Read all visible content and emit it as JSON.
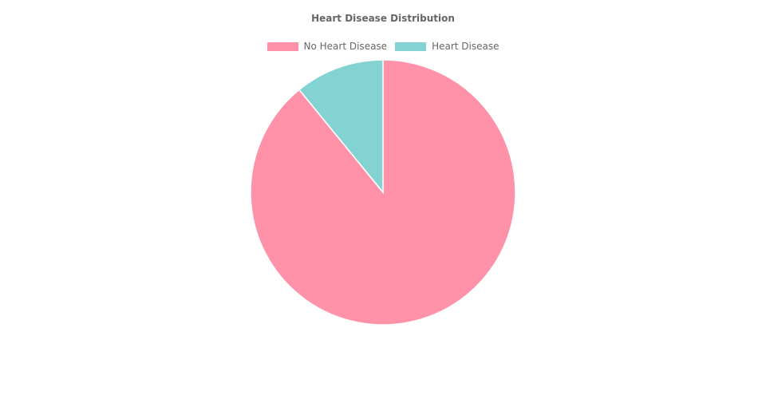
{
  "chart_data": {
    "type": "pie",
    "title": "Heart Disease Distribution",
    "labels": [
      "No Heart Disease",
      "Heart Disease"
    ],
    "values": [
      89.1,
      10.9
    ],
    "colors": [
      "#FF92A8",
      "#83D3D3"
    ],
    "legend_position": "top"
  }
}
